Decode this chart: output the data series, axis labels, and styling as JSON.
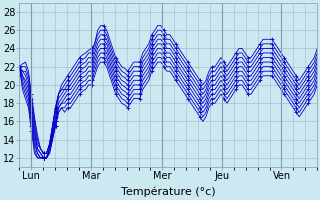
{
  "title": "",
  "xlabel": "Température (°c)",
  "ylabel": "",
  "background_color": "#cce8f0",
  "line_color": "#0000cc",
  "grid_color_major": "#aabbcc",
  "grid_color_minor": "#bbccdd",
  "xlim": [
    0,
    100
  ],
  "ylim": [
    11,
    29
  ],
  "yticks": [
    12,
    14,
    16,
    18,
    20,
    22,
    24,
    26,
    28
  ],
  "day_labels": [
    "Lun",
    "Mar",
    "Mer",
    "Jeu",
    "Ven"
  ],
  "day_tick_pos": [
    4,
    24,
    48,
    68,
    88
  ],
  "day_vline_pos": [
    4,
    24,
    48,
    68,
    88
  ],
  "series": [
    [
      22.0,
      22.3,
      22.5,
      21.5,
      19.0,
      16.5,
      14.5,
      13.0,
      12.5,
      12.5,
      13.5,
      15.5,
      17.5,
      19.0,
      20.0,
      20.5,
      21.0,
      21.5,
      22.0,
      22.5,
      23.0,
      23.3,
      23.5,
      23.8,
      24.0,
      24.5,
      26.0,
      26.5,
      26.5,
      26.0,
      25.0,
      24.0,
      23.0,
      22.5,
      22.0,
      21.8,
      21.5,
      22.0,
      22.5,
      22.5,
      22.5,
      23.5,
      24.0,
      24.5,
      25.5,
      26.0,
      26.5,
      26.5,
      26.0,
      25.5,
      25.5,
      25.0,
      24.5,
      24.0,
      23.5,
      23.0,
      22.5,
      22.0,
      21.5,
      21.0,
      20.5,
      20.0,
      20.5,
      21.5,
      22.0,
      22.0,
      22.5,
      23.0,
      22.5,
      22.0,
      22.5,
      23.0,
      23.5,
      24.0,
      24.0,
      23.5,
      23.0,
      23.0,
      23.5,
      24.0,
      24.5,
      25.0,
      25.0,
      25.0,
      25.0,
      24.5,
      24.0,
      23.5,
      23.0,
      22.5,
      22.0,
      21.5,
      21.0,
      20.5,
      21.0,
      21.5,
      22.0,
      22.5,
      23.0,
      24.0
    ],
    [
      22.0,
      22.0,
      22.0,
      21.0,
      18.5,
      16.0,
      14.0,
      13.0,
      12.5,
      12.5,
      13.5,
      15.5,
      17.5,
      19.0,
      19.5,
      20.0,
      20.5,
      21.0,
      21.5,
      22.0,
      22.5,
      22.8,
      23.0,
      23.5,
      23.5,
      24.5,
      25.5,
      26.0,
      26.0,
      25.5,
      24.5,
      23.5,
      22.5,
      22.0,
      21.5,
      21.3,
      21.0,
      21.5,
      22.0,
      22.0,
      22.0,
      23.0,
      23.5,
      24.0,
      25.0,
      25.5,
      26.0,
      26.0,
      25.5,
      25.0,
      25.0,
      24.5,
      24.0,
      23.5,
      23.0,
      22.5,
      22.0,
      21.5,
      21.0,
      20.5,
      20.0,
      19.5,
      20.0,
      21.0,
      21.5,
      21.5,
      22.0,
      22.5,
      22.0,
      21.5,
      22.0,
      22.5,
      23.0,
      23.5,
      23.5,
      23.0,
      22.5,
      22.5,
      23.0,
      23.5,
      24.0,
      24.5,
      24.5,
      24.5,
      24.5,
      24.0,
      23.5,
      23.0,
      22.5,
      22.0,
      21.5,
      21.0,
      20.5,
      20.0,
      20.5,
      21.0,
      21.5,
      22.0,
      22.5,
      23.5
    ],
    [
      22.0,
      21.5,
      21.5,
      20.5,
      18.0,
      15.5,
      13.5,
      13.0,
      12.5,
      12.5,
      13.5,
      15.5,
      17.5,
      19.0,
      19.5,
      19.5,
      20.0,
      20.5,
      21.0,
      21.5,
      22.0,
      22.3,
      22.5,
      23.0,
      23.0,
      24.0,
      25.0,
      25.5,
      25.5,
      25.0,
      24.0,
      23.0,
      22.0,
      21.5,
      21.0,
      20.8,
      20.5,
      21.0,
      21.5,
      21.5,
      21.5,
      22.5,
      23.0,
      23.5,
      24.5,
      25.0,
      25.5,
      25.5,
      25.0,
      24.5,
      24.5,
      24.0,
      23.5,
      23.0,
      22.5,
      22.0,
      21.5,
      21.0,
      20.5,
      20.0,
      19.5,
      19.0,
      19.5,
      20.5,
      21.0,
      21.0,
      21.5,
      22.0,
      21.5,
      21.0,
      21.5,
      22.0,
      22.5,
      23.0,
      23.0,
      22.5,
      22.0,
      22.0,
      22.5,
      23.0,
      23.5,
      24.0,
      24.0,
      24.0,
      24.0,
      23.5,
      23.0,
      22.5,
      22.0,
      21.5,
      21.0,
      20.5,
      20.0,
      19.5,
      20.0,
      20.5,
      21.0,
      21.5,
      22.0,
      23.0
    ],
    [
      22.0,
      21.5,
      21.0,
      20.0,
      17.5,
      15.0,
      13.0,
      12.5,
      12.0,
      12.0,
      13.0,
      15.0,
      17.0,
      18.5,
      19.0,
      19.5,
      19.5,
      20.0,
      20.5,
      21.0,
      21.5,
      21.8,
      22.0,
      22.5,
      22.5,
      23.5,
      24.5,
      25.0,
      25.0,
      24.5,
      23.5,
      22.5,
      21.5,
      21.0,
      20.5,
      20.3,
      20.0,
      20.5,
      21.0,
      21.0,
      21.0,
      22.0,
      22.5,
      23.0,
      24.0,
      24.5,
      25.0,
      25.0,
      24.5,
      24.0,
      24.0,
      23.5,
      23.0,
      22.5,
      22.0,
      21.5,
      21.0,
      20.5,
      20.0,
      19.5,
      19.0,
      18.5,
      19.0,
      20.0,
      20.5,
      20.5,
      21.0,
      21.5,
      21.0,
      20.5,
      21.0,
      21.5,
      22.0,
      22.5,
      22.5,
      22.0,
      21.5,
      21.5,
      22.0,
      22.5,
      23.0,
      23.5,
      23.5,
      23.5,
      23.5,
      23.0,
      22.5,
      22.0,
      21.5,
      21.0,
      20.5,
      20.0,
      19.5,
      19.0,
      19.5,
      20.0,
      20.5,
      21.0,
      21.5,
      22.5
    ],
    [
      22.0,
      21.0,
      20.5,
      19.5,
      17.0,
      14.5,
      13.0,
      12.5,
      12.0,
      12.0,
      13.0,
      14.5,
      16.5,
      18.0,
      18.5,
      19.0,
      19.5,
      19.5,
      20.0,
      20.5,
      21.0,
      21.3,
      21.5,
      22.0,
      22.0,
      23.0,
      24.0,
      24.5,
      24.5,
      24.0,
      23.0,
      22.0,
      21.0,
      20.5,
      20.0,
      19.8,
      19.5,
      20.0,
      20.5,
      20.5,
      20.5,
      21.5,
      22.0,
      22.5,
      23.5,
      24.0,
      24.5,
      24.5,
      24.0,
      23.5,
      23.5,
      23.0,
      22.5,
      22.0,
      21.5,
      21.0,
      20.5,
      20.0,
      19.5,
      19.0,
      18.5,
      18.0,
      18.5,
      19.5,
      20.0,
      20.0,
      20.5,
      21.0,
      20.5,
      20.0,
      20.5,
      21.0,
      21.5,
      22.0,
      22.0,
      21.5,
      21.0,
      21.0,
      21.5,
      22.0,
      22.5,
      23.0,
      23.0,
      23.0,
      23.0,
      22.5,
      22.0,
      21.5,
      21.0,
      20.5,
      20.0,
      19.5,
      19.0,
      18.5,
      19.0,
      19.5,
      20.0,
      20.5,
      21.0,
      22.0
    ],
    [
      22.0,
      21.0,
      20.0,
      19.0,
      16.5,
      14.0,
      12.5,
      12.0,
      12.0,
      12.0,
      13.0,
      14.5,
      16.0,
      17.5,
      18.0,
      18.5,
      19.0,
      19.0,
      19.5,
      20.0,
      20.5,
      20.8,
      21.0,
      21.5,
      21.5,
      22.5,
      23.5,
      24.0,
      24.0,
      23.5,
      22.5,
      21.5,
      20.5,
      20.0,
      19.5,
      19.3,
      19.0,
      19.5,
      20.0,
      20.0,
      20.0,
      21.0,
      21.5,
      22.0,
      23.0,
      23.5,
      24.0,
      24.0,
      23.5,
      23.0,
      23.0,
      22.5,
      22.0,
      21.5,
      21.0,
      20.5,
      20.0,
      19.5,
      19.0,
      18.5,
      18.0,
      17.5,
      18.0,
      19.0,
      19.5,
      19.5,
      20.0,
      20.5,
      20.0,
      19.5,
      20.0,
      20.5,
      21.0,
      21.5,
      21.5,
      21.0,
      20.5,
      20.5,
      21.0,
      21.5,
      22.0,
      22.5,
      22.5,
      22.5,
      22.5,
      22.0,
      21.5,
      21.0,
      20.5,
      20.0,
      19.5,
      19.0,
      18.5,
      18.0,
      18.5,
      19.0,
      19.5,
      20.0,
      20.5,
      21.5
    ],
    [
      22.0,
      20.5,
      19.5,
      18.5,
      16.0,
      13.5,
      12.5,
      12.0,
      12.0,
      12.0,
      13.0,
      14.5,
      16.0,
      17.5,
      18.0,
      18.0,
      18.5,
      18.5,
      19.0,
      19.5,
      20.0,
      20.3,
      20.5,
      21.0,
      21.0,
      22.0,
      23.0,
      23.5,
      23.5,
      23.0,
      22.0,
      21.0,
      20.0,
      19.5,
      19.0,
      18.8,
      18.5,
      19.0,
      19.5,
      19.5,
      19.5,
      20.5,
      21.0,
      21.5,
      22.5,
      23.0,
      23.5,
      23.5,
      23.0,
      22.5,
      22.5,
      22.0,
      21.5,
      21.0,
      20.5,
      20.0,
      19.5,
      19.0,
      18.5,
      18.0,
      17.5,
      17.0,
      17.5,
      18.5,
      19.0,
      19.0,
      19.5,
      20.0,
      19.5,
      19.0,
      19.5,
      20.0,
      20.5,
      21.0,
      21.0,
      20.5,
      20.0,
      20.0,
      20.5,
      21.0,
      21.5,
      22.0,
      22.0,
      22.0,
      22.0,
      21.5,
      21.0,
      20.5,
      20.0,
      19.5,
      19.0,
      18.5,
      18.0,
      17.5,
      18.0,
      18.5,
      19.0,
      19.5,
      20.0,
      21.0
    ],
    [
      22.0,
      20.0,
      19.0,
      18.0,
      15.5,
      13.0,
      12.0,
      12.0,
      12.0,
      12.0,
      12.5,
      14.0,
      15.5,
      17.0,
      17.5,
      17.5,
      18.0,
      18.0,
      18.5,
      19.0,
      19.5,
      19.8,
      20.0,
      20.5,
      20.5,
      21.5,
      22.5,
      23.0,
      23.0,
      22.5,
      21.5,
      20.5,
      19.5,
      19.0,
      18.5,
      18.3,
      18.0,
      18.5,
      19.0,
      19.0,
      19.0,
      20.0,
      20.5,
      21.0,
      22.0,
      22.5,
      23.0,
      23.0,
      22.5,
      22.0,
      22.0,
      21.5,
      21.0,
      20.5,
      20.0,
      19.5,
      19.0,
      18.5,
      18.0,
      17.5,
      17.0,
      16.5,
      17.0,
      18.0,
      18.5,
      18.5,
      19.0,
      19.5,
      19.0,
      18.5,
      19.0,
      19.5,
      20.0,
      20.5,
      20.5,
      20.0,
      19.5,
      19.5,
      20.0,
      20.5,
      21.0,
      21.5,
      21.5,
      21.5,
      21.5,
      21.0,
      20.5,
      20.0,
      19.5,
      19.0,
      18.5,
      18.0,
      17.5,
      17.0,
      17.5,
      18.0,
      18.5,
      19.0,
      19.5,
      20.5
    ],
    [
      22.0,
      19.5,
      18.5,
      17.5,
      15.0,
      12.5,
      12.0,
      12.0,
      12.0,
      12.0,
      12.5,
      14.0,
      15.5,
      17.0,
      17.5,
      17.0,
      17.5,
      17.5,
      18.0,
      18.5,
      19.0,
      19.3,
      19.5,
      20.0,
      20.0,
      21.0,
      22.0,
      22.5,
      22.5,
      22.0,
      21.0,
      20.0,
      19.0,
      18.5,
      18.0,
      17.8,
      17.5,
      18.0,
      18.5,
      18.5,
      18.5,
      19.5,
      20.0,
      20.5,
      21.5,
      22.0,
      22.5,
      22.5,
      22.0,
      21.5,
      21.5,
      21.0,
      20.5,
      20.0,
      19.5,
      19.0,
      18.5,
      18.0,
      17.5,
      17.0,
      16.5,
      16.0,
      16.5,
      17.5,
      18.0,
      18.0,
      18.5,
      19.0,
      18.5,
      18.0,
      18.5,
      19.0,
      19.5,
      20.0,
      20.0,
      19.5,
      19.0,
      19.0,
      19.5,
      20.0,
      20.5,
      21.0,
      21.0,
      21.0,
      21.0,
      20.5,
      20.0,
      19.5,
      19.0,
      18.5,
      18.0,
      17.5,
      17.0,
      16.5,
      17.0,
      17.5,
      18.0,
      18.5,
      19.0,
      20.0
    ]
  ]
}
